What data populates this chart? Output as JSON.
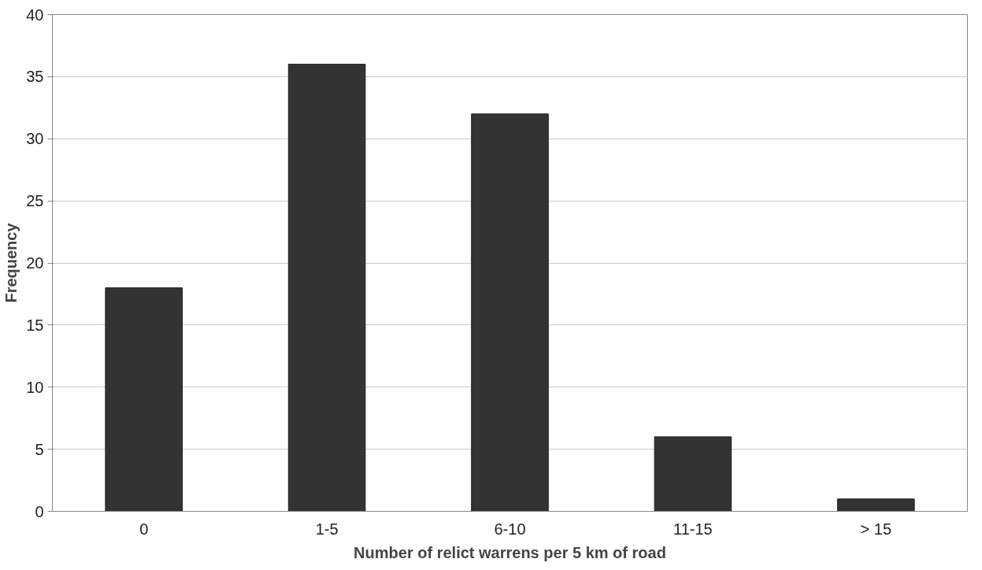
{
  "chart_data": {
    "type": "bar",
    "xlabel": "Number of relict warrens per 5 km of road",
    "ylabel": "Frequency",
    "categories": [
      "0",
      "1-5",
      "6-10",
      "11-15",
      "> 15"
    ],
    "values": [
      18,
      36,
      32,
      6,
      1
    ],
    "color": "#333333",
    "ylim": [
      0,
      40
    ],
    "yticks": [
      0,
      5,
      10,
      15,
      20,
      25,
      30,
      35,
      40
    ],
    "grid": "y"
  }
}
